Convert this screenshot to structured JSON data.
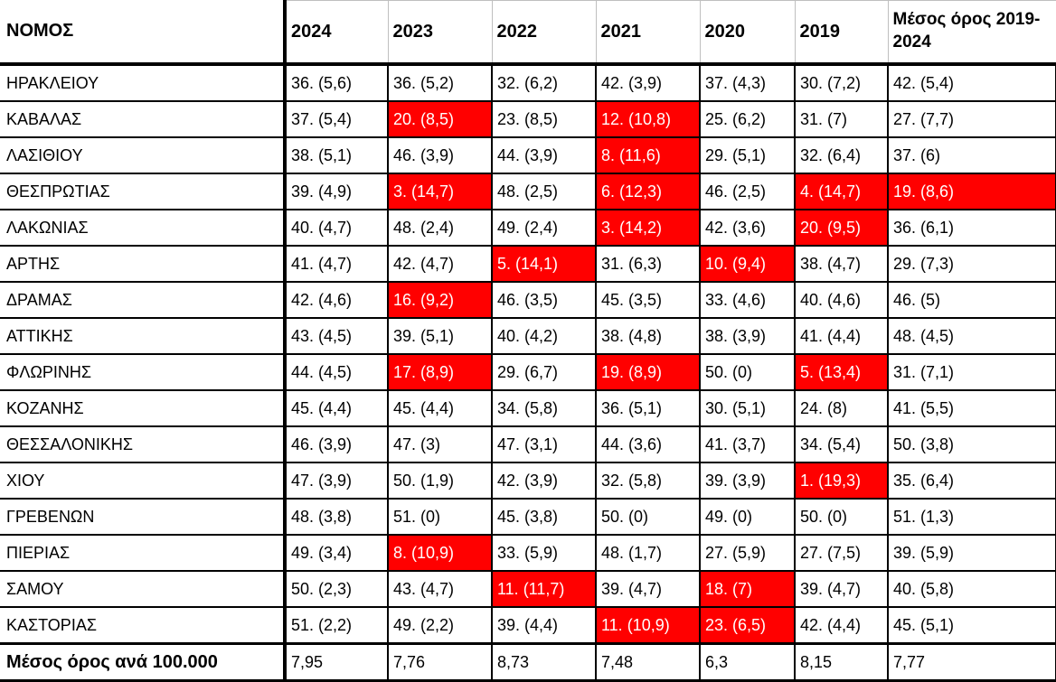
{
  "colors": {
    "highlight_bg": "#FF0000",
    "highlight_text": "#FFFFFF",
    "grid": "#000000",
    "header_grid": "#BFBFBF"
  },
  "table": {
    "header": {
      "col0": "ΝΟΜΟΣ",
      "years": [
        "2024",
        "2023",
        "2022",
        "2021",
        "2020",
        "2019"
      ],
      "avg_label": "Μέσος όρος 2019-2024"
    },
    "rows": [
      {
        "name": "ΗΡΑΚΛΕΙΟΥ",
        "cells": [
          {
            "v": "36. (5,6)",
            "hl": false
          },
          {
            "v": "36. (5,2)",
            "hl": false
          },
          {
            "v": "32. (6,2)",
            "hl": false
          },
          {
            "v": "42. (3,9)",
            "hl": false
          },
          {
            "v": "37. (4,3)",
            "hl": false
          },
          {
            "v": "30. (7,2)",
            "hl": false
          },
          {
            "v": "42. (5,4)",
            "hl": false
          }
        ]
      },
      {
        "name": "ΚΑΒΑΛΑΣ",
        "cells": [
          {
            "v": "37. (5,4)",
            "hl": false
          },
          {
            "v": "20. (8,5)",
            "hl": true
          },
          {
            "v": "23. (8,5)",
            "hl": false
          },
          {
            "v": "12. (10,8)",
            "hl": true
          },
          {
            "v": "25. (6,2)",
            "hl": false
          },
          {
            "v": "31. (7)",
            "hl": false
          },
          {
            "v": "27. (7,7)",
            "hl": false
          }
        ]
      },
      {
        "name": "ΛΑΣΙΘΙΟΥ",
        "cells": [
          {
            "v": "38. (5,1)",
            "hl": false
          },
          {
            "v": "46. (3,9)",
            "hl": false
          },
          {
            "v": "44. (3,9)",
            "hl": false
          },
          {
            "v": "8. (11,6)",
            "hl": true
          },
          {
            "v": "29. (5,1)",
            "hl": false
          },
          {
            "v": "32. (6,4)",
            "hl": false
          },
          {
            "v": "37. (6)",
            "hl": false
          }
        ]
      },
      {
        "name": "ΘΕΣΠΡΩΤΙΑΣ",
        "cells": [
          {
            "v": "39. (4,9)",
            "hl": false
          },
          {
            "v": "3. (14,7)",
            "hl": true
          },
          {
            "v": "48. (2,5)",
            "hl": false
          },
          {
            "v": "6. (12,3)",
            "hl": true
          },
          {
            "v": "46. (2,5)",
            "hl": false
          },
          {
            "v": "4. (14,7)",
            "hl": true
          },
          {
            "v": "19. (8,6)",
            "hl": true
          }
        ]
      },
      {
        "name": "ΛΑΚΩΝΙΑΣ",
        "cells": [
          {
            "v": "40. (4,7)",
            "hl": false
          },
          {
            "v": "48. (2,4)",
            "hl": false
          },
          {
            "v": "49. (2,4)",
            "hl": false
          },
          {
            "v": "3. (14,2)",
            "hl": true
          },
          {
            "v": "42. (3,6)",
            "hl": false
          },
          {
            "v": "20. (9,5)",
            "hl": true
          },
          {
            "v": "36. (6,1)",
            "hl": false
          }
        ]
      },
      {
        "name": "ΑΡΤΗΣ",
        "cells": [
          {
            "v": "41. (4,7)",
            "hl": false
          },
          {
            "v": "42. (4,7)",
            "hl": false
          },
          {
            "v": "5. (14,1)",
            "hl": true
          },
          {
            "v": "31. (6,3)",
            "hl": false
          },
          {
            "v": "10. (9,4)",
            "hl": true
          },
          {
            "v": "38. (4,7)",
            "hl": false
          },
          {
            "v": "29. (7,3)",
            "hl": false
          }
        ]
      },
      {
        "name": "ΔΡΑΜΑΣ",
        "cells": [
          {
            "v": "42. (4,6)",
            "hl": false
          },
          {
            "v": "16. (9,2)",
            "hl": true
          },
          {
            "v": "46. (3,5)",
            "hl": false
          },
          {
            "v": "45. (3,5)",
            "hl": false
          },
          {
            "v": "33. (4,6)",
            "hl": false
          },
          {
            "v": "40. (4,6)",
            "hl": false
          },
          {
            "v": "46. (5)",
            "hl": false
          }
        ]
      },
      {
        "name": "ΑΤΤΙΚΗΣ",
        "cells": [
          {
            "v": "43. (4,5)",
            "hl": false
          },
          {
            "v": "39. (5,1)",
            "hl": false
          },
          {
            "v": "40. (4,2)",
            "hl": false
          },
          {
            "v": "38. (4,8)",
            "hl": false
          },
          {
            "v": "38. (3,9)",
            "hl": false
          },
          {
            "v": "41. (4,4)",
            "hl": false
          },
          {
            "v": "48. (4,5)",
            "hl": false
          }
        ]
      },
      {
        "name": "ΦΛΩΡΙΝΗΣ",
        "cells": [
          {
            "v": "44. (4,5)",
            "hl": false
          },
          {
            "v": "17. (8,9)",
            "hl": true
          },
          {
            "v": "29. (6,7)",
            "hl": false
          },
          {
            "v": "19. (8,9)",
            "hl": true
          },
          {
            "v": "50. (0)",
            "hl": false
          },
          {
            "v": "5. (13,4)",
            "hl": true
          },
          {
            "v": "31. (7,1)",
            "hl": false
          }
        ]
      },
      {
        "name": "ΚΟΖΑΝΗΣ",
        "cells": [
          {
            "v": "45. (4,4)",
            "hl": false
          },
          {
            "v": "45. (4,4)",
            "hl": false
          },
          {
            "v": "34. (5,8)",
            "hl": false
          },
          {
            "v": "36. (5,1)",
            "hl": false
          },
          {
            "v": "30. (5,1)",
            "hl": false
          },
          {
            "v": "24. (8)",
            "hl": false
          },
          {
            "v": "41. (5,5)",
            "hl": false
          }
        ]
      },
      {
        "name": "ΘΕΣΣΑΛΟΝΙΚΗΣ",
        "cells": [
          {
            "v": "46. (3,9)",
            "hl": false
          },
          {
            "v": "47. (3)",
            "hl": false
          },
          {
            "v": "47. (3,1)",
            "hl": false
          },
          {
            "v": "44. (3,6)",
            "hl": false
          },
          {
            "v": "41. (3,7)",
            "hl": false
          },
          {
            "v": "34. (5,4)",
            "hl": false
          },
          {
            "v": "50. (3,8)",
            "hl": false
          }
        ]
      },
      {
        "name": "ΧΙΟΥ",
        "cells": [
          {
            "v": "47. (3,9)",
            "hl": false
          },
          {
            "v": "50. (1,9)",
            "hl": false
          },
          {
            "v": "42. (3,9)",
            "hl": false
          },
          {
            "v": "32. (5,8)",
            "hl": false
          },
          {
            "v": "39. (3,9)",
            "hl": false
          },
          {
            "v": "1. (19,3)",
            "hl": true
          },
          {
            "v": "35. (6,4)",
            "hl": false
          }
        ]
      },
      {
        "name": "ΓΡΕΒΕΝΩΝ",
        "cells": [
          {
            "v": "48. (3,8)",
            "hl": false
          },
          {
            "v": "51. (0)",
            "hl": false
          },
          {
            "v": "45. (3,8)",
            "hl": false
          },
          {
            "v": "50. (0)",
            "hl": false
          },
          {
            "v": "49. (0)",
            "hl": false
          },
          {
            "v": "50. (0)",
            "hl": false
          },
          {
            "v": "51. (1,3)",
            "hl": false
          }
        ]
      },
      {
        "name": "ΠΙΕΡΙΑΣ",
        "cells": [
          {
            "v": "49. (3,4)",
            "hl": false
          },
          {
            "v": "8. (10,9)",
            "hl": true
          },
          {
            "v": "33. (5,9)",
            "hl": false
          },
          {
            "v": "48. (1,7)",
            "hl": false
          },
          {
            "v": "27. (5,9)",
            "hl": false
          },
          {
            "v": "27. (7,5)",
            "hl": false
          },
          {
            "v": "39. (5,9)",
            "hl": false
          }
        ]
      },
      {
        "name": "ΣΑΜΟΥ",
        "cells": [
          {
            "v": "50. (2,3)",
            "hl": false
          },
          {
            "v": "43. (4,7)",
            "hl": false
          },
          {
            "v": "11. (11,7)",
            "hl": true
          },
          {
            "v": "39. (4,7)",
            "hl": false
          },
          {
            "v": "18. (7)",
            "hl": true
          },
          {
            "v": "39. (4,7)",
            "hl": false
          },
          {
            "v": "40. (5,8)",
            "hl": false
          }
        ]
      },
      {
        "name": "ΚΑΣΤΟΡΙΑΣ",
        "cells": [
          {
            "v": "51. (2,2)",
            "hl": false
          },
          {
            "v": "49. (2,2)",
            "hl": false
          },
          {
            "v": "39. (4,4)",
            "hl": false
          },
          {
            "v": "11. (10,9)",
            "hl": true
          },
          {
            "v": "23. (6,5)",
            "hl": true
          },
          {
            "v": "42. (4,4)",
            "hl": false
          },
          {
            "v": "45. (5,1)",
            "hl": false
          }
        ]
      }
    ],
    "footer": {
      "label": "Μέσος όρος ανά 100.000",
      "values": [
        "7,95",
        "7,76",
        "8,73",
        "7,48",
        "6,3",
        "8,15",
        "7,77"
      ]
    }
  }
}
